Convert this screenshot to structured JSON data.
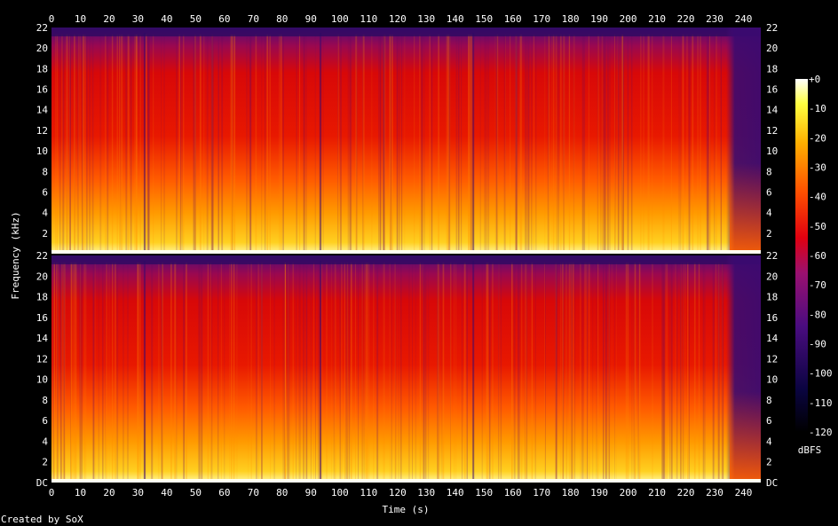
{
  "chart_data": {
    "type": "heatmap",
    "title": "",
    "xlabel": "Time (s)",
    "ylabel": "Frequency (kHz)",
    "xlim": [
      0,
      246
    ],
    "ylim": [
      0,
      22
    ],
    "x_ticks": [
      "0",
      "10",
      "20",
      "30",
      "40",
      "50",
      "60",
      "70",
      "80",
      "90",
      "100",
      "110",
      "120",
      "130",
      "140",
      "150",
      "160",
      "170",
      "180",
      "190",
      "200",
      "210",
      "220",
      "230",
      "240"
    ],
    "y_ticks": [
      "2",
      "4",
      "6",
      "8",
      "10",
      "12",
      "14",
      "16",
      "18",
      "20",
      "22"
    ],
    "dc_label": "DC",
    "channels": [
      {
        "name": "",
        "end_fade_start_s": 234
      },
      {
        "name": "",
        "end_fade_start_s": 234
      }
    ],
    "colorbar": {
      "label": "dBFS",
      "range": [
        -120,
        0
      ],
      "ticks": [
        "+0",
        "-10",
        "-20",
        "-30",
        "-40",
        "-50",
        "-60",
        "-70",
        "-80",
        "-90",
        "-100",
        "-110",
        "-120"
      ]
    },
    "sections_s": [
      0,
      32,
      93,
      146,
      235,
      246
    ],
    "colors": {
      "loud": "#ffffc0",
      "mid": "#ffa000",
      "red": "#e00000",
      "dark": "#5a1070",
      "quiet": "#000000"
    }
  },
  "footer": {
    "credit": "Created by SoX"
  }
}
